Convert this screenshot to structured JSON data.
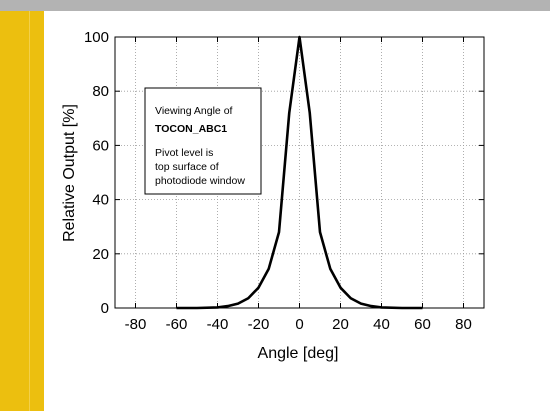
{
  "colors": {
    "top_bar": "#b3b3b3",
    "accent_band": "#ecbf0f",
    "curve": "#000000",
    "grid": "#9a9a9a"
  },
  "chart_data": {
    "type": "line",
    "title": "",
    "xlabel": "Angle [deg]",
    "ylabel": "Relative Output [%]",
    "xlim": [
      -90,
      90
    ],
    "ylim": [
      0,
      100
    ],
    "x_ticks": [
      -80,
      -60,
      -40,
      -20,
      0,
      20,
      40,
      60,
      80
    ],
    "y_ticks": [
      0,
      20,
      40,
      60,
      80,
      100
    ],
    "x_tick_labels": [
      "-80",
      "-60",
      "-40",
      "-20",
      "0",
      "20",
      "40",
      "60",
      "80"
    ],
    "y_tick_labels": [
      "0",
      "20",
      "40",
      "60",
      "80",
      "100"
    ],
    "grid": true,
    "grid_style": "dotted",
    "legend": "none",
    "annotation": {
      "line1": "Viewing Angle of",
      "line2": "TOCON_ABC1",
      "line3": "Pivot level is",
      "line4": "top surface of",
      "line5": "photodiode window"
    },
    "series": [
      {
        "x": [
          -60,
          -50,
          -40,
          -35,
          -30,
          -25,
          -20,
          -15,
          -10,
          -5,
          0,
          5,
          10,
          15,
          20,
          25,
          30,
          35,
          40,
          50,
          60
        ],
        "y": [
          0,
          0,
          0.2,
          0.7,
          1.6,
          3.6,
          7.5,
          14.5,
          28,
          72,
          100,
          72,
          28,
          14.5,
          7.5,
          3.6,
          1.6,
          0.7,
          0.2,
          0,
          0
        ]
      }
    ]
  }
}
